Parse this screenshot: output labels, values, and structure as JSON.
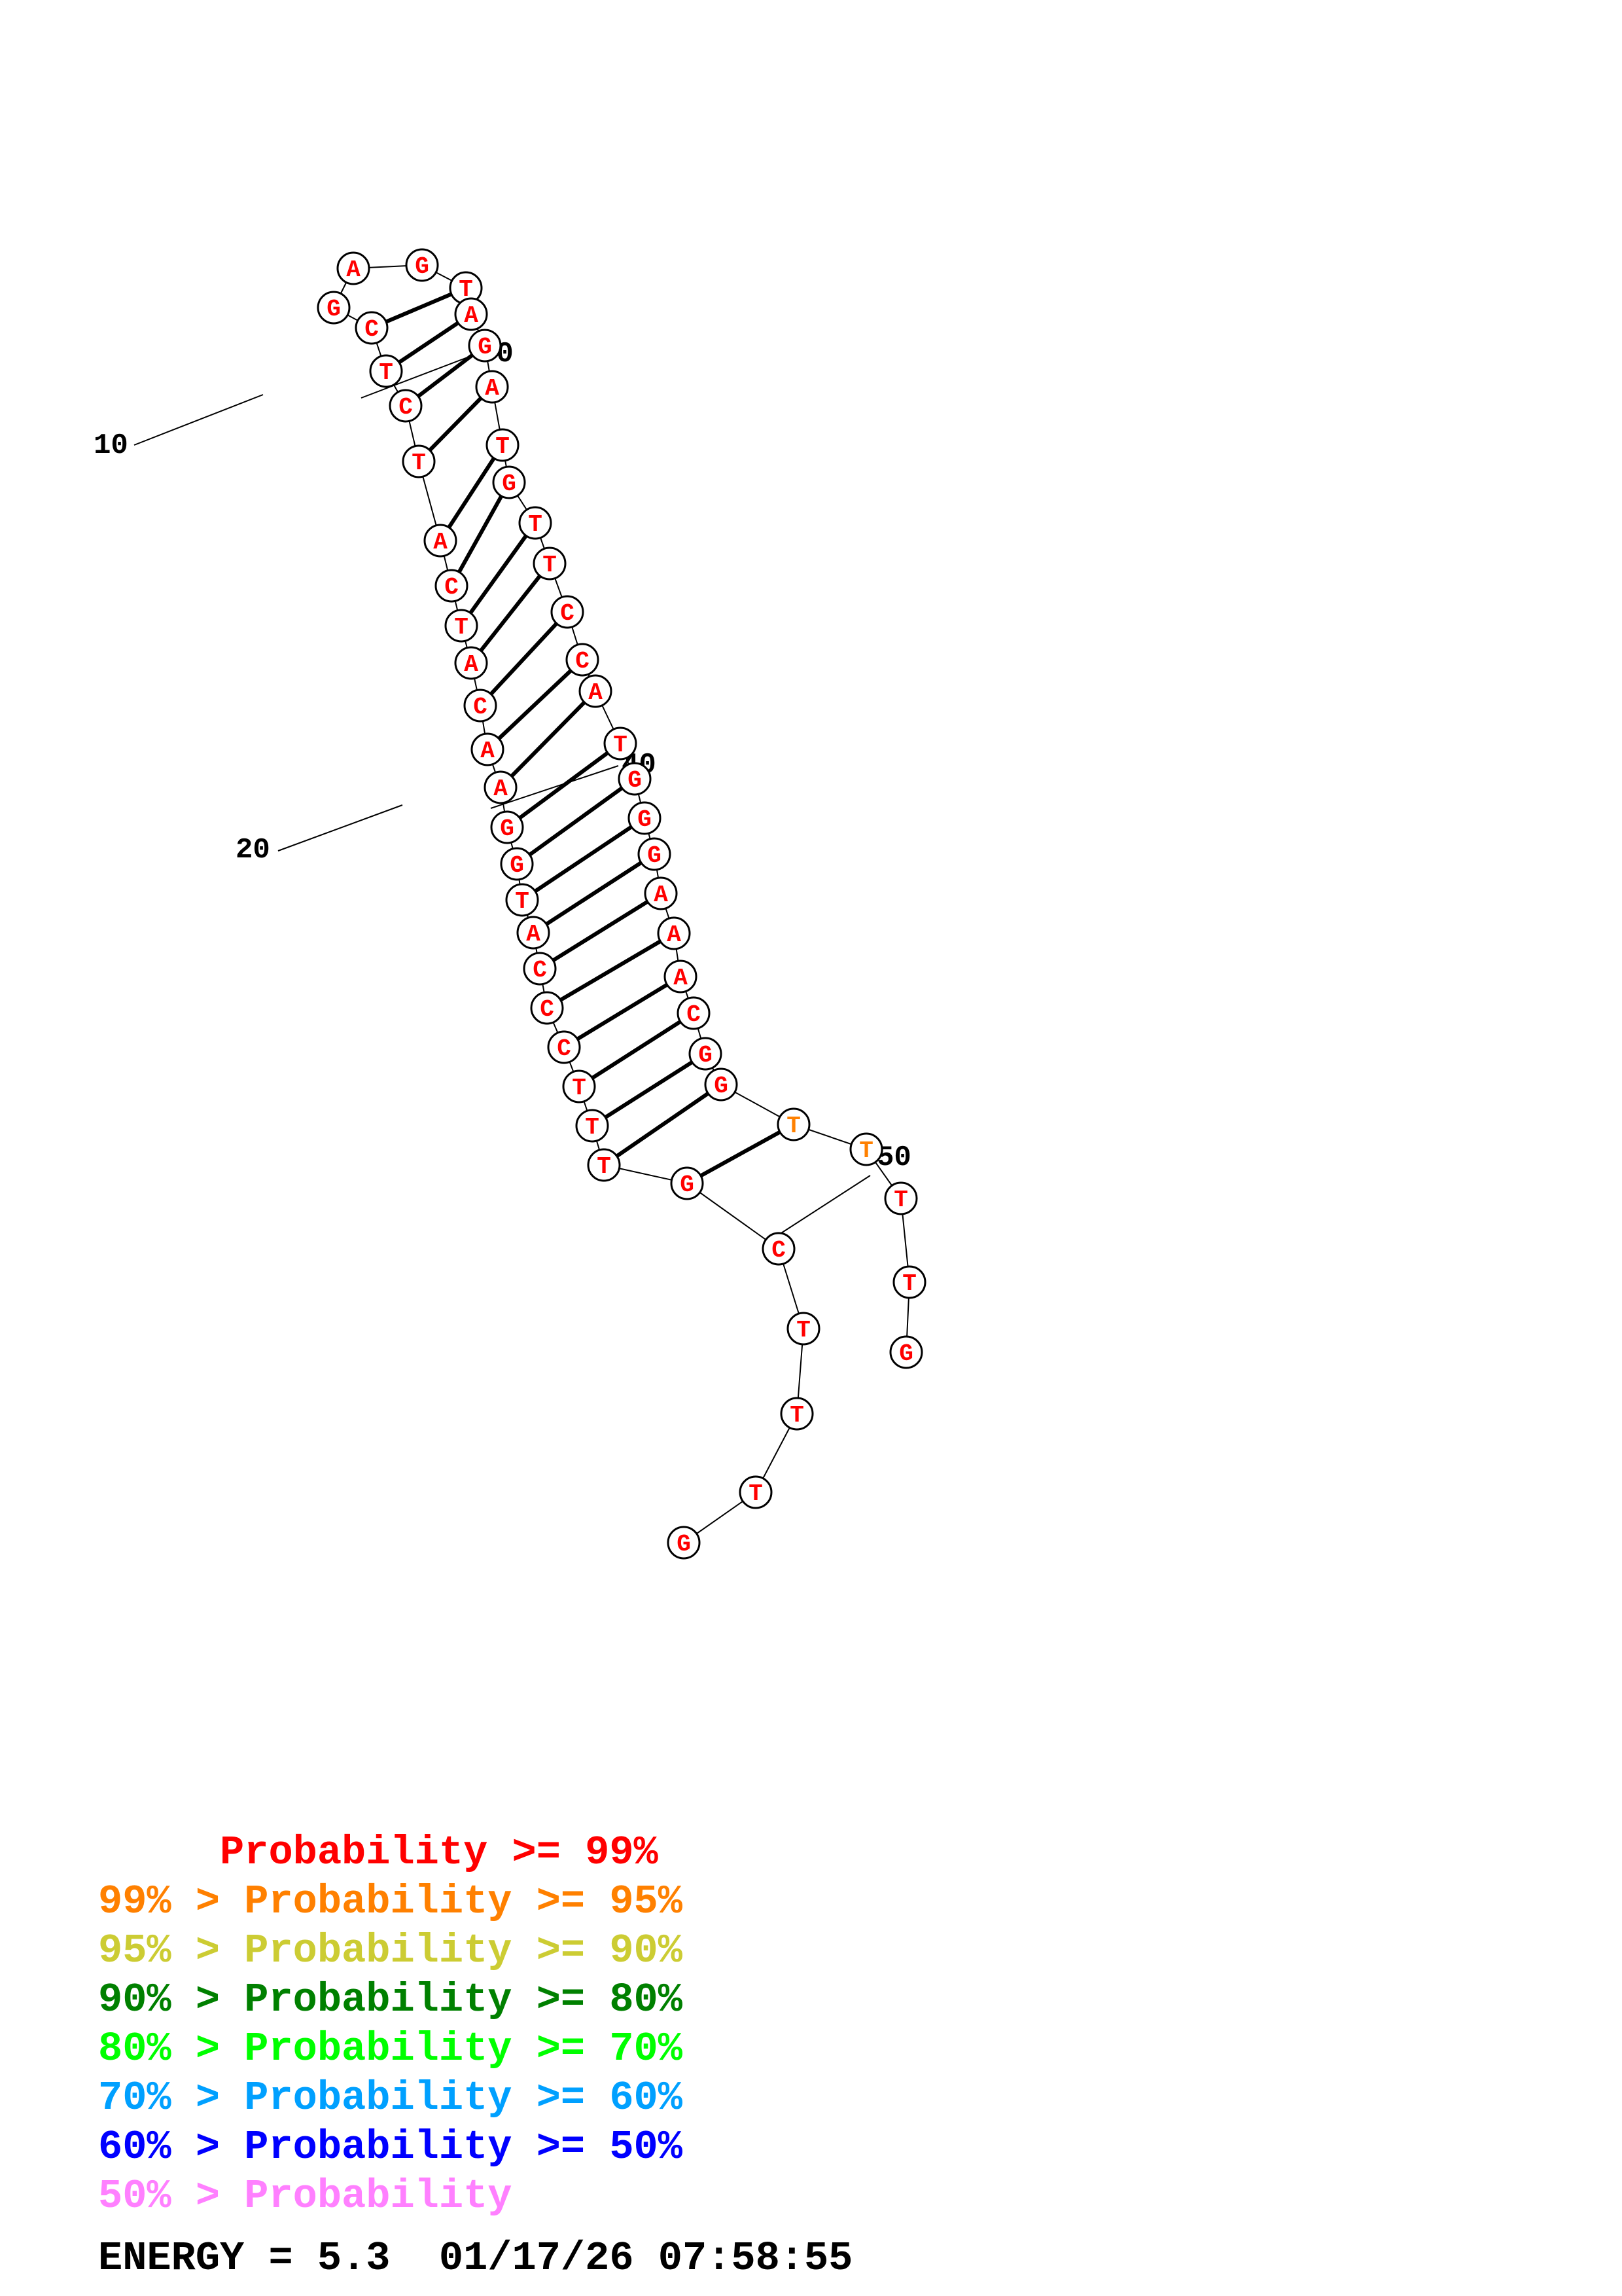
{
  "structure": {
    "sequence": [
      "G",
      "T",
      "T",
      "T",
      "C",
      "G",
      "T",
      "T",
      "T",
      "C",
      "C",
      "C",
      "A",
      "T",
      "G",
      "G",
      "A",
      "A",
      "C",
      "A",
      "T",
      "C",
      "A",
      "T",
      "C",
      "T",
      "C",
      "G",
      "A",
      "G",
      "T",
      "A",
      "G",
      "A",
      "T",
      "G",
      "T",
      "T",
      "C",
      "C",
      "A",
      "T",
      "G",
      "G",
      "G",
      "A",
      "A",
      "A",
      "C",
      "G",
      "G",
      "T",
      "T",
      "T",
      "T",
      "G"
    ],
    "base_colors": {
      "high": "#ff0000",
      "orange": "#ff8000"
    },
    "numbering": [
      {
        "label": "10"
      },
      {
        "label": "20"
      },
      {
        "label": "30"
      },
      {
        "label": "40"
      },
      {
        "label": "50"
      }
    ]
  },
  "legend": [
    {
      "text": "     Probability >= 99%",
      "color": "#ff0000"
    },
    {
      "text": "99% > Probability >= 95%",
      "color": "#ff8000"
    },
    {
      "text": "95% > Probability >= 90%",
      "color": "#cccc33"
    },
    {
      "text": "90% > Probability >= 80%",
      "color": "#008000"
    },
    {
      "text": "80% > Probability >= 70%",
      "color": "#00ff00"
    },
    {
      "text": "70% > Probability >= 60%",
      "color": "#00a0ff"
    },
    {
      "text": "60% > Probability >= 50%",
      "color": "#0000ff"
    },
    {
      "text": "50% > Probability",
      "color": "#ff80ff"
    }
  ],
  "footer": {
    "energy": "ENERGY = 5.3  01/17/26 07:58:55"
  }
}
